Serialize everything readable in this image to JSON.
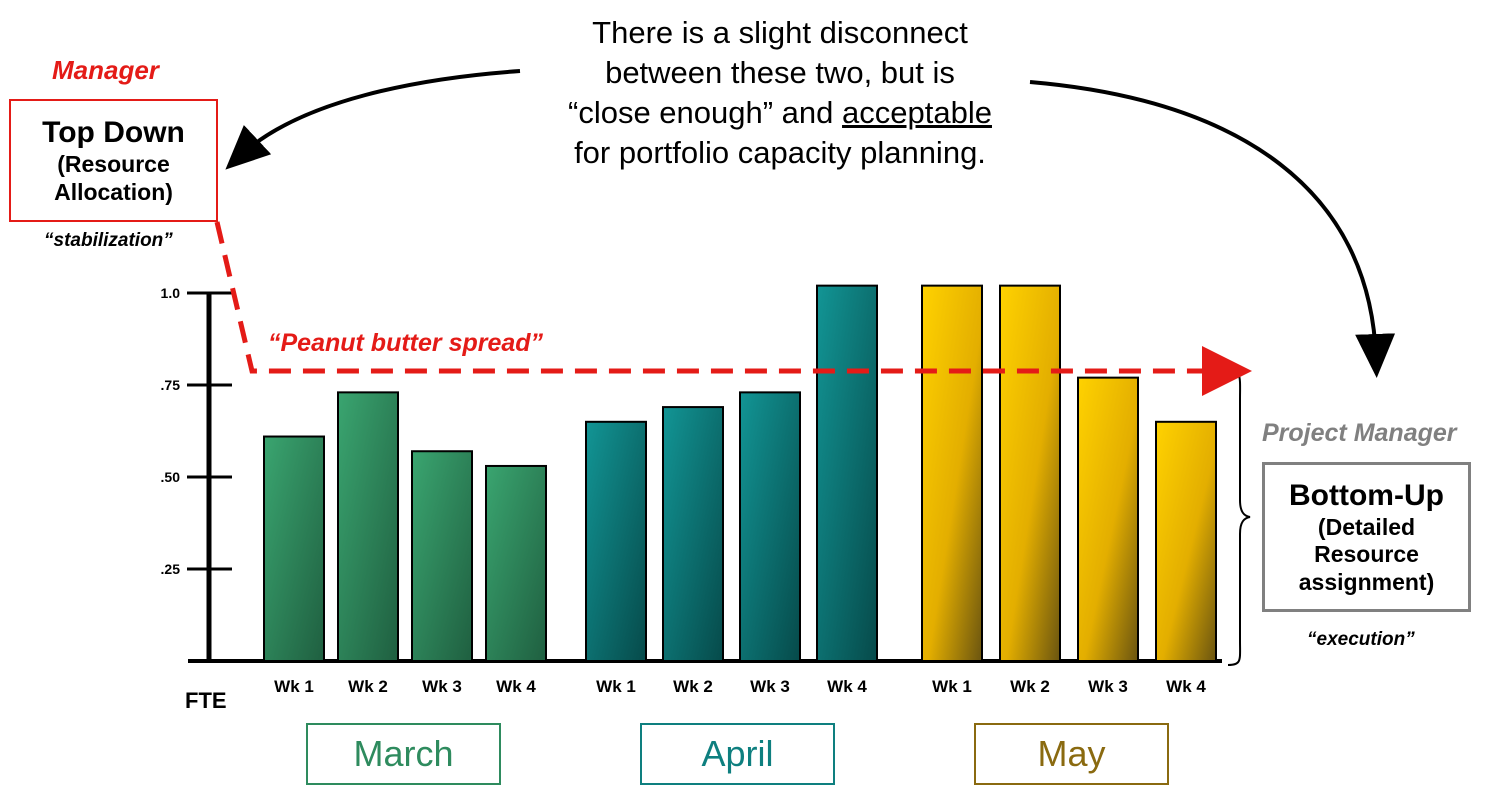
{
  "headline": {
    "line1": "There is a slight disconnect",
    "line2": "between these two, but is",
    "line3_pre": "“close enough” and ",
    "line3_underlined": "acceptable",
    "line4": "for portfolio capacity planning."
  },
  "manager": {
    "role": "Manager",
    "title": "Top Down",
    "subtitle_line1": "(Resource",
    "subtitle_line2": "Allocation)",
    "note": "“stabilization”"
  },
  "project_manager": {
    "role": "Project Manager",
    "title": "Bottom-Up",
    "subtitle_line1": "(Detailed",
    "subtitle_line2": "Resource",
    "subtitle_line3": "assignment)",
    "note": "“execution”"
  },
  "spread_label": "“Peanut butter spread”",
  "colors": {
    "march": "#2e8b5e",
    "april": "#0e7f7f",
    "may": "#f2c200",
    "red": "#e41b17",
    "gray": "#808080",
    "may_label": "#8a6a10"
  },
  "months": [
    {
      "name": "March",
      "color_key": "march"
    },
    {
      "name": "April",
      "color_key": "april"
    },
    {
      "name": "May",
      "color_key": "may"
    }
  ],
  "chart_data": {
    "type": "bar",
    "title": "",
    "xlabel": "",
    "ylabel": "FTE",
    "ylim": [
      0,
      1.0
    ],
    "yticks": [
      {
        "value": 0.25,
        "label": ".25"
      },
      {
        "value": 0.5,
        "label": ".50"
      },
      {
        "value": 0.75,
        "label": ".75"
      },
      {
        "value": 1.0,
        "label": "1.0"
      }
    ],
    "reference_line": {
      "value": 0.79,
      "label": "“Peanut butter spread”"
    },
    "groups": [
      {
        "name": "March",
        "categories": [
          "Wk 1",
          "Wk 2",
          "Wk 3",
          "Wk 4"
        ],
        "values": [
          0.61,
          0.73,
          0.57,
          0.53
        ]
      },
      {
        "name": "April",
        "categories": [
          "Wk 1",
          "Wk 2",
          "Wk 3",
          "Wk 4"
        ],
        "values": [
          0.65,
          0.69,
          0.73,
          1.02
        ]
      },
      {
        "name": "May",
        "categories": [
          "Wk 1",
          "Wk 2",
          "Wk 3",
          "Wk 4"
        ],
        "values": [
          1.02,
          1.02,
          0.77,
          0.65
        ]
      }
    ]
  }
}
